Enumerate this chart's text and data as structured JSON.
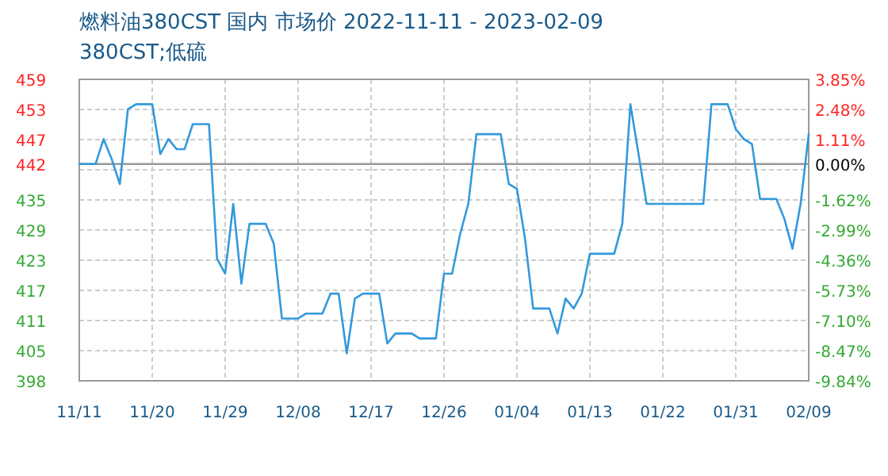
{
  "chart_data": {
    "type": "line",
    "title": "燃料油380CST 国内 市场价 2022-11-11 - 2023-02-09",
    "subtitle": "380CST;低硫",
    "x": [
      "2022-11-11",
      "2022-11-13",
      "2022-11-14",
      "2022-11-15",
      "2022-11-16",
      "2022-11-17",
      "2022-11-18",
      "2022-11-20",
      "2022-11-21",
      "2022-11-22",
      "2022-11-23",
      "2022-11-24",
      "2022-11-25",
      "2022-11-27",
      "2022-11-28",
      "2022-11-29",
      "2022-11-30",
      "2022-12-01",
      "2022-12-02",
      "2022-12-04",
      "2022-12-05",
      "2022-12-06",
      "2022-12-07",
      "2022-12-08",
      "2022-12-09",
      "2022-12-11",
      "2022-12-12",
      "2022-12-13",
      "2022-12-14",
      "2022-12-15",
      "2022-12-16",
      "2022-12-18",
      "2022-12-19",
      "2022-12-20",
      "2022-12-22",
      "2022-12-23",
      "2022-12-25",
      "2022-12-26",
      "2022-12-27",
      "2022-12-28",
      "2022-12-29",
      "2022-12-30",
      "2023-01-02",
      "2023-01-03",
      "2023-01-04",
      "2023-01-05",
      "2023-01-06",
      "2023-01-08",
      "2023-01-09",
      "2023-01-10",
      "2023-01-11",
      "2023-01-12",
      "2023-01-13",
      "2023-01-16",
      "2023-01-17",
      "2023-01-18",
      "2023-01-19",
      "2023-01-20",
      "2023-01-27",
      "2023-01-28",
      "2023-01-30",
      "2023-01-31",
      "2023-02-01",
      "2023-02-02",
      "2023-02-03",
      "2023-02-05",
      "2023-02-06",
      "2023-02-07",
      "2023-02-08",
      "2023-02-09"
    ],
    "series": [
      {
        "color": "#3399dd",
        "values": [
          442,
          442,
          447,
          443,
          438,
          453,
          454,
          454,
          444,
          447,
          445,
          445,
          450,
          450,
          423,
          420,
          434,
          418,
          430,
          430,
          426,
          411,
          411,
          411,
          412,
          412,
          416,
          416,
          404,
          415,
          416,
          416,
          406,
          408,
          408,
          407,
          407,
          420,
          420,
          428,
          434,
          448,
          448,
          438,
          437,
          427,
          413,
          413,
          408,
          415,
          413,
          416,
          424,
          424,
          430,
          454,
          444,
          434,
          434,
          454,
          454,
          449,
          447,
          446,
          435,
          435,
          431,
          425,
          434,
          448
        ]
      }
    ],
    "xlim": [
      "2022-11-11",
      "2023-02-09"
    ],
    "xticks": [
      {
        "value": "2022-11-11",
        "label": "11/11"
      },
      {
        "value": "2022-11-20",
        "label": "11/20"
      },
      {
        "value": "2022-11-29",
        "label": "11/29"
      },
      {
        "value": "2022-12-08",
        "label": "12/08"
      },
      {
        "value": "2022-12-17",
        "label": "12/17"
      },
      {
        "value": "2022-12-26",
        "label": "12/26"
      },
      {
        "value": "2023-01-04",
        "label": "01/04"
      },
      {
        "value": "2023-01-13",
        "label": "01/13"
      },
      {
        "value": "2023-01-22",
        "label": "01/22"
      },
      {
        "value": "2023-01-31",
        "label": "01/31"
      },
      {
        "value": "2023-02-09",
        "label": "02/09"
      }
    ],
    "ylim": [
      398.5,
      459
    ],
    "yticks": [
      {
        "value": 398.5,
        "label": "398"
      },
      {
        "value": 404.55,
        "label": "405"
      },
      {
        "value": 410.6,
        "label": "411"
      },
      {
        "value": 416.65,
        "label": "417"
      },
      {
        "value": 422.7,
        "label": "423"
      },
      {
        "value": 428.75,
        "label": "429"
      },
      {
        "value": 434.8,
        "label": "435"
      },
      {
        "value": 440.85,
        "label": null
      },
      {
        "value": 442,
        "label": "442"
      },
      {
        "value": 446.9,
        "label": "447"
      },
      {
        "value": 452.95,
        "label": "453"
      },
      {
        "value": 459,
        "label": "459"
      }
    ],
    "y2lim": [
      -9.84,
      3.85
    ],
    "y2ticks": [
      {
        "value": -9.84,
        "label": "-9.84%"
      },
      {
        "value": -8.47,
        "label": "-8.47%"
      },
      {
        "value": -7.1,
        "label": "-7.10%"
      },
      {
        "value": -5.73,
        "label": "-5.73%"
      },
      {
        "value": -4.36,
        "label": "-4.36%"
      },
      {
        "value": -2.99,
        "label": "-2.99%"
      },
      {
        "value": -1.62,
        "label": "-1.62%"
      },
      {
        "value": 0,
        "label": "0.00%"
      },
      {
        "value": 1.11,
        "label": "1.11%"
      },
      {
        "value": 2.48,
        "label": "2.48%"
      },
      {
        "value": 3.85,
        "label": "3.85%"
      }
    ],
    "ref_lines": [
      {
        "axis": "y",
        "value": 442,
        "color": "#999999"
      }
    ],
    "grid": true
  }
}
